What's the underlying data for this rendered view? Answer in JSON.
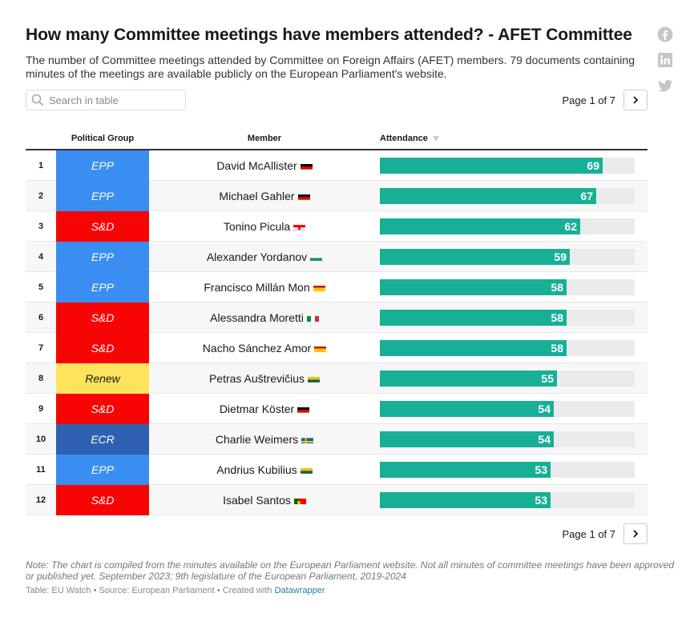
{
  "header": {
    "title": "How many Committee meetings have members attended? - AFET Committee",
    "subtitle": "The number of Committee meetings attended by Committee on Foreign Affairs (AFET) members. 79 documents containing minutes of the meetings are available publicly on the European Parliament's website."
  },
  "social": [
    "facebook-icon",
    "linkedin-icon",
    "twitter-icon"
  ],
  "search": {
    "placeholder": "Search in table"
  },
  "pager": {
    "label": "Page 1 of 7"
  },
  "colors": {
    "EPP": "#3a8df1",
    "S&D": "#f70505",
    "Renew": "#ffe35c",
    "ECR": "#2f60b2",
    "bar": "#17b096",
    "bar_bg": "#ebebeb"
  },
  "chart_data": {
    "type": "table",
    "columns": [
      "Political Group",
      "Member",
      "Attendance"
    ],
    "sort_column": "Attendance",
    "max": 79,
    "rows": [
      {
        "rank": "1",
        "group": "EPP",
        "member": "David McAllister",
        "flag": "de",
        "attendance": 69
      },
      {
        "rank": "2",
        "group": "EPP",
        "member": "Michael Gahler",
        "flag": "de",
        "attendance": 67
      },
      {
        "rank": "3",
        "group": "S&D",
        "member": "Tonino Picula",
        "flag": "hr",
        "attendance": 62
      },
      {
        "rank": "4",
        "group": "EPP",
        "member": "Alexander Yordanov",
        "flag": "bg",
        "attendance": 59
      },
      {
        "rank": "5",
        "group": "EPP",
        "member": "Francisco Millán Mon",
        "flag": "es",
        "attendance": 58
      },
      {
        "rank": "6",
        "group": "S&D",
        "member": "Alessandra Moretti",
        "flag": "it",
        "attendance": 58
      },
      {
        "rank": "7",
        "group": "S&D",
        "member": "Nacho Sánchez Amor",
        "flag": "es",
        "attendance": 58
      },
      {
        "rank": "8",
        "group": "Renew",
        "member": "Petras Auštrevičius",
        "flag": "lt",
        "attendance": 55
      },
      {
        "rank": "9",
        "group": "S&D",
        "member": "Dietmar Köster",
        "flag": "de",
        "attendance": 54
      },
      {
        "rank": "10",
        "group": "ECR",
        "member": "Charlie Weimers",
        "flag": "se",
        "attendance": 54
      },
      {
        "rank": "11",
        "group": "EPP",
        "member": "Andrius Kubilius",
        "flag": "lt",
        "attendance": 53
      },
      {
        "rank": "12",
        "group": "S&D",
        "member": "Isabel Santos",
        "flag": "pt",
        "attendance": 53
      }
    ]
  },
  "note": "Note: The chart is compiled from the minutes available on the European Parliament website. Not all minutes of committee meetings have been approved or published yet. September 2023; 9th legislature of the European Parliament, 2019-2024",
  "footer": {
    "prefix": "Table: EU Watch • Source: European Parliament • Created with ",
    "link": "Datawrapper"
  }
}
